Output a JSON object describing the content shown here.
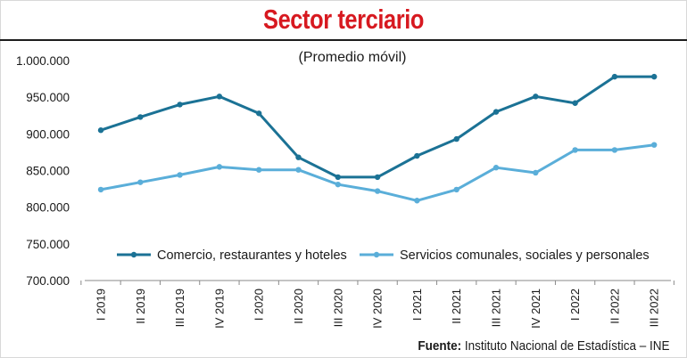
{
  "header": {
    "title": "Sector terciario"
  },
  "footer": {
    "source_label": "Fuente:",
    "source_text": "Instituto Nacional de Estadística – INE"
  },
  "colors": {
    "title": "#d71920",
    "series1": "#1b7295",
    "series2": "#5aaed9"
  },
  "chart_data": {
    "type": "line",
    "title": "Sector terciario",
    "subtitle": "(Promedio móvil)",
    "xlabel": "",
    "ylabel": "",
    "ylim": [
      700000,
      1000000
    ],
    "yticks": [
      700000,
      750000,
      800000,
      850000,
      900000,
      950000,
      1000000
    ],
    "ytick_labels": [
      "700.000",
      "750.000",
      "800.000",
      "850.000",
      "900.000",
      "950.000",
      "1.000.000"
    ],
    "grid": false,
    "legend_position": "bottom-inside",
    "categories": [
      "I 2019",
      "II 2019",
      "III 2019",
      "IV 2019",
      "I 2020",
      "II 2020",
      "III 2020",
      "IV 2020",
      "I 2021",
      "II 2021",
      "III 2021",
      "IV 2021",
      "I 2022",
      "II 2022",
      "III 2022"
    ],
    "series": [
      {
        "name": "Comercio, restaurantes y hoteles",
        "color": "#1b7295",
        "values": [
          905000,
          923000,
          940000,
          951000,
          928000,
          868000,
          841000,
          841000,
          870000,
          893000,
          930000,
          951000,
          942000,
          978000,
          978000
        ]
      },
      {
        "name": "Servicios comunales, sociales y personales",
        "color": "#5aaed9",
        "values": [
          824000,
          834000,
          844000,
          855000,
          851000,
          851000,
          831000,
          822000,
          809000,
          824000,
          854000,
          847000,
          878000,
          878000,
          885000
        ]
      }
    ]
  }
}
